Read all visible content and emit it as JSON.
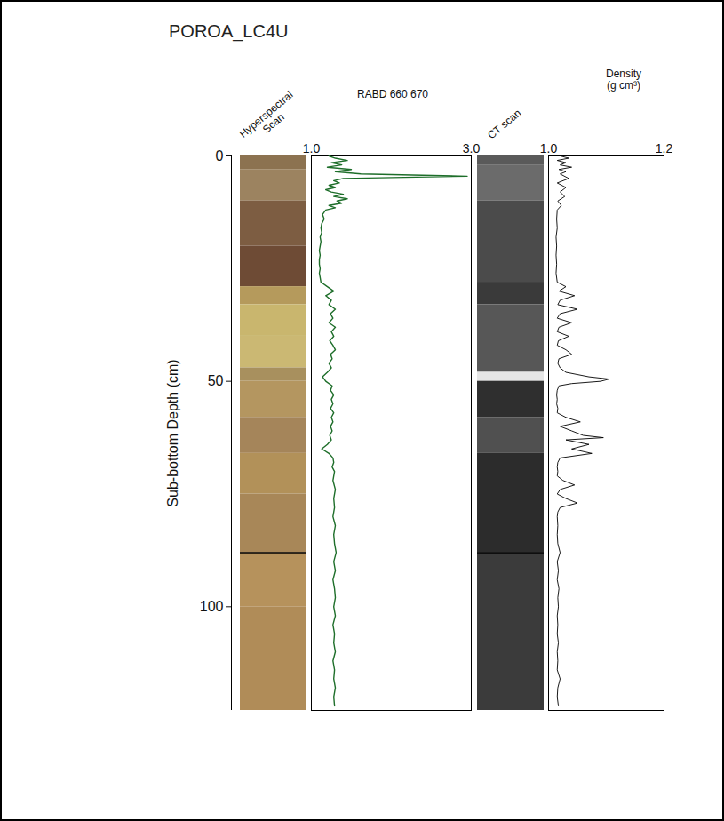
{
  "chart_data": {
    "type": "core_log",
    "title": "POROA_LC4U",
    "ylabel": "Sub-bottom Depth (cm)",
    "ylim": [
      0,
      123
    ],
    "yticks": [
      0,
      50,
      100
    ],
    "section_break_depth": 88,
    "panels": [
      {
        "type": "image_strip",
        "title": "Hyperspectral Scan",
        "bands": [
          {
            "top": 0,
            "bottom": 3,
            "color": "#8c7250"
          },
          {
            "top": 3,
            "bottom": 10,
            "color": "#9c8360"
          },
          {
            "top": 10,
            "bottom": 20,
            "color": "#7d5d42"
          },
          {
            "top": 20,
            "bottom": 29,
            "color": "#6e4b35"
          },
          {
            "top": 29,
            "bottom": 33,
            "color": "#b59a5c"
          },
          {
            "top": 33,
            "bottom": 40,
            "color": "#c9b66e"
          },
          {
            "top": 40,
            "bottom": 47,
            "color": "#cbb873"
          },
          {
            "top": 47,
            "bottom": 50,
            "color": "#a8905e"
          },
          {
            "top": 50,
            "bottom": 58,
            "color": "#b49660"
          },
          {
            "top": 58,
            "bottom": 66,
            "color": "#a5855a"
          },
          {
            "top": 66,
            "bottom": 75,
            "color": "#b29159"
          },
          {
            "top": 75,
            "bottom": 88,
            "color": "#a88758"
          },
          {
            "top": 88,
            "bottom": 100,
            "color": "#b6925c"
          },
          {
            "top": 100,
            "bottom": 123,
            "color": "#b08c58"
          }
        ]
      },
      {
        "type": "line",
        "title": "RABD 660 670",
        "xlim": [
          1.0,
          3.0
        ],
        "xticks": [
          {
            "value": 1,
            "label": "1.0"
          },
          {
            "value": 3,
            "label": "3.0"
          }
        ],
        "color": "#1e6e2a",
        "depth": [
          0,
          0.5,
          1,
          1.5,
          2,
          2.5,
          3,
          3.5,
          4,
          4.5,
          5,
          5.5,
          6,
          6.5,
          7,
          7.5,
          8,
          8.5,
          9,
          9.5,
          10,
          10.5,
          11,
          11.5,
          12,
          13,
          14,
          15,
          16,
          17,
          18,
          19,
          20,
          21,
          22,
          23,
          24,
          25,
          26,
          27,
          28,
          29,
          30,
          31,
          32,
          33,
          34,
          35,
          36,
          37,
          38,
          39,
          40,
          41,
          42,
          43,
          44,
          45,
          46,
          47,
          48,
          49,
          50,
          51,
          52,
          53,
          54,
          55,
          56,
          57,
          58,
          59,
          60,
          61,
          62,
          63,
          64,
          65,
          66,
          67,
          68,
          69,
          70,
          72,
          74,
          76,
          78,
          80,
          82,
          84,
          86,
          88,
          90,
          92,
          94,
          96,
          98,
          100,
          102,
          104,
          106,
          108,
          110,
          112,
          114,
          116,
          118,
          120,
          122
        ],
        "values": [
          1.22,
          1.3,
          1.45,
          1.25,
          1.38,
          1.2,
          1.5,
          1.3,
          1.62,
          2.95,
          1.4,
          1.28,
          1.35,
          1.22,
          1.3,
          1.18,
          1.25,
          1.4,
          1.28,
          1.45,
          1.32,
          1.38,
          1.22,
          1.3,
          1.18,
          1.14,
          1.16,
          1.13,
          1.12,
          1.13,
          1.11,
          1.12,
          1.11,
          1.1,
          1.11,
          1.1,
          1.1,
          1.11,
          1.1,
          1.11,
          1.12,
          1.2,
          1.28,
          1.18,
          1.25,
          1.22,
          1.3,
          1.24,
          1.27,
          1.22,
          1.3,
          1.25,
          1.28,
          1.23,
          1.27,
          1.3,
          1.24,
          1.26,
          1.22,
          1.25,
          1.2,
          1.14,
          1.18,
          1.26,
          1.24,
          1.28,
          1.25,
          1.27,
          1.24,
          1.28,
          1.25,
          1.27,
          1.24,
          1.26,
          1.23,
          1.25,
          1.2,
          1.13,
          1.22,
          1.27,
          1.28,
          1.26,
          1.29,
          1.27,
          1.3,
          1.28,
          1.29,
          1.27,
          1.3,
          1.28,
          1.29,
          1.31,
          1.28,
          1.3,
          1.27,
          1.29,
          1.3,
          1.28,
          1.3,
          1.27,
          1.29,
          1.28,
          1.3,
          1.27,
          1.29,
          1.28,
          1.3,
          1.28,
          1.29
        ]
      },
      {
        "type": "image_strip",
        "title": "CT scan",
        "bands": [
          {
            "top": 0,
            "bottom": 2,
            "color": "#5a5a5a"
          },
          {
            "top": 2,
            "bottom": 10,
            "color": "#6b6b6b"
          },
          {
            "top": 10,
            "bottom": 28,
            "color": "#4b4b4b"
          },
          {
            "top": 28,
            "bottom": 33,
            "color": "#3a3a3a"
          },
          {
            "top": 33,
            "bottom": 48,
            "color": "#575757"
          },
          {
            "top": 48,
            "bottom": 50,
            "color": "#e6e6e6"
          },
          {
            "top": 50,
            "bottom": 58,
            "color": "#2f2f2f"
          },
          {
            "top": 58,
            "bottom": 66,
            "color": "#505050"
          },
          {
            "top": 66,
            "bottom": 88,
            "color": "#2c2c2c"
          },
          {
            "top": 88,
            "bottom": 123,
            "color": "#3b3b3b"
          }
        ]
      },
      {
        "type": "line",
        "title": "Density (g cm³)",
        "xlim": [
          1.0,
          1.2
        ],
        "xticks": [
          {
            "value": 1,
            "label": "1.0"
          },
          1.2
        ],
        "color": "#000000",
        "depth": [
          0,
          0.5,
          1,
          1.5,
          2,
          2.5,
          3,
          3.5,
          4,
          5,
          6,
          7,
          8,
          9,
          10,
          11,
          12,
          14,
          16,
          18,
          20,
          22,
          24,
          26,
          28,
          29,
          30,
          31,
          32,
          33,
          34,
          35,
          36,
          37,
          38,
          39,
          40,
          41,
          42,
          43,
          44,
          45,
          46,
          47,
          48,
          49,
          49.5,
          50,
          50.5,
          51,
          52,
          53,
          54,
          55,
          56,
          57,
          58,
          59,
          60,
          61,
          62,
          62.5,
          63,
          64,
          65,
          66,
          67,
          68,
          69,
          70,
          71,
          72,
          73,
          74,
          75,
          76,
          77,
          78,
          79,
          80,
          82,
          84,
          86,
          88,
          90,
          92,
          94,
          96,
          98,
          100,
          102,
          104,
          106,
          108,
          110,
          112,
          114,
          116,
          118,
          120,
          122
        ],
        "values": [
          1.02,
          1.035,
          1.015,
          1.03,
          1.02,
          1.04,
          1.018,
          1.03,
          1.02,
          1.035,
          1.015,
          1.03,
          1.02,
          1.028,
          1.016,
          1.022,
          1.015,
          1.014,
          1.015,
          1.013,
          1.014,
          1.013,
          1.014,
          1.013,
          1.015,
          1.03,
          1.018,
          1.045,
          1.02,
          1.016,
          1.05,
          1.02,
          1.015,
          1.04,
          1.018,
          1.015,
          1.035,
          1.017,
          1.015,
          1.03,
          1.04,
          1.018,
          1.016,
          1.02,
          1.03,
          1.07,
          1.105,
          1.09,
          1.04,
          1.018,
          1.015,
          1.014,
          1.015,
          1.014,
          1.016,
          1.015,
          1.03,
          1.055,
          1.02,
          1.04,
          1.06,
          1.095,
          1.03,
          1.07,
          1.04,
          1.075,
          1.02,
          1.016,
          1.015,
          1.016,
          1.015,
          1.025,
          1.045,
          1.02,
          1.015,
          1.03,
          1.05,
          1.02,
          1.016,
          1.015,
          1.016,
          1.015,
          1.016,
          1.02,
          1.015,
          1.017,
          1.015,
          1.018,
          1.016,
          1.017,
          1.015,
          1.016,
          1.015,
          1.017,
          1.015,
          1.016,
          1.015,
          1.02,
          1.016,
          1.015,
          1.017
        ]
      }
    ]
  }
}
